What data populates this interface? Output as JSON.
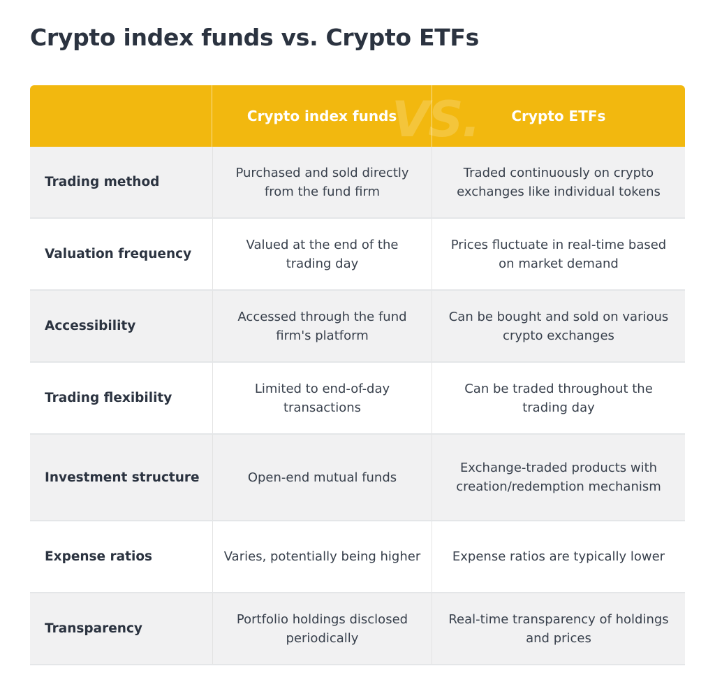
{
  "title": "Crypto index funds vs. Crypto ETFs",
  "header": {
    "col_a": "Crypto index funds",
    "col_b": "Crypto ETFs",
    "watermark": "VS."
  },
  "rows": [
    {
      "label": "Trading method",
      "a": "Purchased and sold directly from the fund firm",
      "b": "Traded continuously on crypto exchanges like individual tokens"
    },
    {
      "label": "Valuation frequency",
      "a": "Valued at the end of the trading day",
      "b": "Prices fluctuate in real-time based on market demand"
    },
    {
      "label": "Accessibility",
      "a": "Accessed through the fund firm's platform",
      "b": "Can be bought and sold on various crypto exchanges"
    },
    {
      "label": "Trading flexibility",
      "a": "Limited to end-of-day transactions",
      "b": "Can be traded throughout the trading day"
    },
    {
      "label": "Investment structure",
      "a": "Open-end mutual funds",
      "b": "Exchange-traded products with creation/redemption mechanism"
    },
    {
      "label": "Expense ratios",
      "a": "Varies, potentially being higher",
      "b": "Expense ratios are typically lower"
    },
    {
      "label": "Transparency",
      "a": "Portfolio holdings disclosed periodically",
      "b": "Real-time transparency of holdings and prices"
    }
  ],
  "colors": {
    "header_bg": "#f2b80f",
    "row_shade": "#f1f1f2",
    "text": "#2b3340"
  }
}
